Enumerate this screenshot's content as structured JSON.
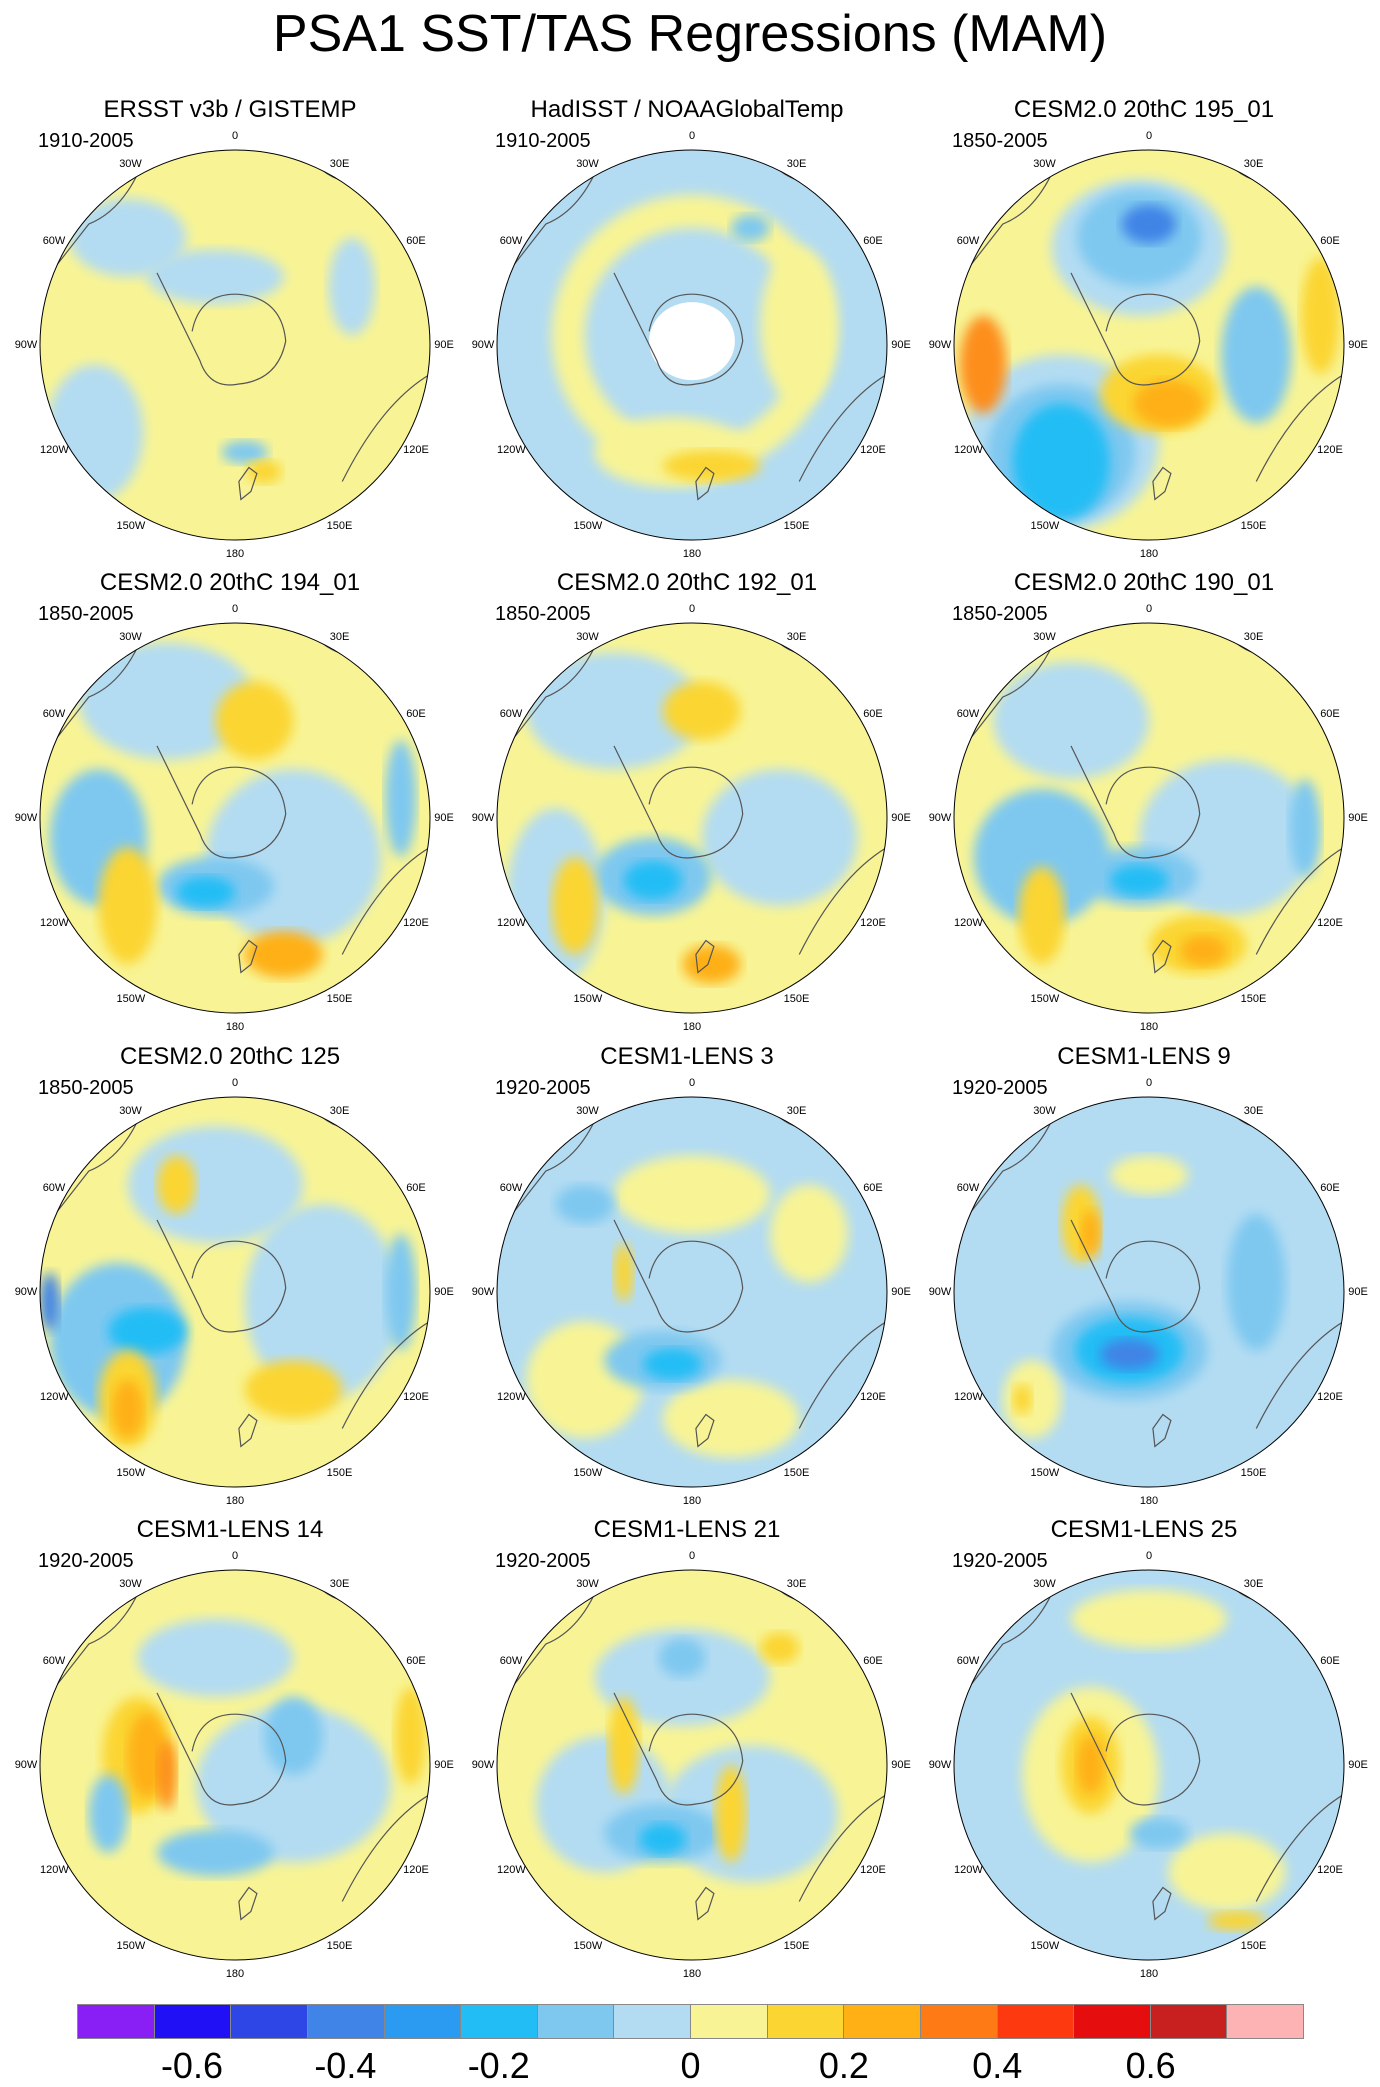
{
  "title": "PSA1 SST/TAS Regressions (MAM)",
  "lon_labels": [
    "0",
    "30E",
    "60E",
    "90E",
    "120E",
    "150E",
    "180",
    "150W",
    "120W",
    "90W",
    "60W",
    "30W"
  ],
  "panels": [
    {
      "title": "ERSST v3b / GISTEMP",
      "period": "1910-2005",
      "blobs": [
        [
          "#f8f495",
          0,
          0,
          1.0,
          1.0
        ],
        [
          "#b3dcf2",
          -0.72,
          0.45,
          0.25,
          0.35
        ],
        [
          "#b3dcf2",
          -0.55,
          -0.55,
          0.3,
          0.2
        ],
        [
          "#7ec8f0",
          0.05,
          0.55,
          0.12,
          0.06
        ],
        [
          "#b3dcf2",
          -0.1,
          -0.35,
          0.35,
          0.14
        ],
        [
          "#fbd531",
          0.15,
          0.65,
          0.09,
          0.06
        ],
        [
          "#b3dcf2",
          0.6,
          -0.3,
          0.12,
          0.25
        ]
      ],
      "land": true,
      "mask": false
    },
    {
      "title": "HadISST / NOAAGlobalTemp",
      "period": "1910-2005",
      "blobs": [
        [
          "#b3dcf2",
          0,
          0,
          1.0,
          1.0
        ],
        [
          "#f8f495",
          0,
          -0.05,
          0.72,
          0.72
        ],
        [
          "#b3dcf2",
          0,
          -0.05,
          0.55,
          0.55
        ],
        [
          "#f8f495",
          -0.1,
          0.55,
          0.4,
          0.18
        ],
        [
          "#fbd531",
          0.1,
          0.62,
          0.25,
          0.08
        ],
        [
          "#f8f495",
          0.55,
          -0.1,
          0.2,
          0.4
        ],
        [
          "#7ec8f0",
          0.3,
          -0.6,
          0.1,
          0.07
        ]
      ],
      "land": true,
      "mask": true
    },
    {
      "title": "CESM2.0 20thC 195_01",
      "period": "1850-2005",
      "blobs": [
        [
          "#f8f495",
          0,
          0,
          1.0,
          1.0
        ],
        [
          "#b3dcf2",
          -0.05,
          -0.5,
          0.45,
          0.35
        ],
        [
          "#7ec8f0",
          -0.05,
          -0.55,
          0.32,
          0.25
        ],
        [
          "#3f84e6",
          0,
          -0.62,
          0.14,
          0.1
        ],
        [
          "#b3dcf2",
          -0.45,
          0.5,
          0.5,
          0.45
        ],
        [
          "#7ec8f0",
          -0.45,
          0.55,
          0.38,
          0.35
        ],
        [
          "#22bdf5",
          -0.45,
          0.6,
          0.25,
          0.3
        ],
        [
          "#fd8e1a",
          -0.85,
          0.1,
          0.12,
          0.25
        ],
        [
          "#fbd531",
          0.05,
          0.25,
          0.3,
          0.2
        ],
        [
          "#feb014",
          0.1,
          0.3,
          0.18,
          0.12
        ],
        [
          "#fbd531",
          0.88,
          -0.15,
          0.1,
          0.3
        ],
        [
          "#7ec8f0",
          0.55,
          0.05,
          0.18,
          0.35
        ]
      ],
      "land": true,
      "mask": false
    },
    {
      "title": "CESM2.0 20thC 194_01",
      "period": "1850-2005",
      "blobs": [
        [
          "#f8f495",
          0,
          0,
          1.0,
          1.0
        ],
        [
          "#b3dcf2",
          -0.35,
          -0.6,
          0.45,
          0.3
        ],
        [
          "#b3dcf2",
          0.3,
          0.2,
          0.45,
          0.45
        ],
        [
          "#7ec8f0",
          -0.7,
          0.1,
          0.25,
          0.35
        ],
        [
          "#7ec8f0",
          -0.1,
          0.35,
          0.3,
          0.15
        ],
        [
          "#22bdf5",
          -0.15,
          0.38,
          0.15,
          0.08
        ],
        [
          "#fbd531",
          -0.55,
          0.45,
          0.15,
          0.3
        ],
        [
          "#feb014",
          0.25,
          0.7,
          0.2,
          0.12
        ],
        [
          "#fbd531",
          0.1,
          -0.5,
          0.2,
          0.2
        ],
        [
          "#7ec8f0",
          0.85,
          -0.1,
          0.08,
          0.3
        ]
      ],
      "land": true,
      "mask": false
    },
    {
      "title": "CESM2.0 20thC 192_01",
      "period": "1850-2005",
      "blobs": [
        [
          "#f8f495",
          0,
          0,
          1.0,
          1.0
        ],
        [
          "#b3dcf2",
          -0.4,
          -0.55,
          0.45,
          0.3
        ],
        [
          "#b3dcf2",
          -0.7,
          0.4,
          0.25,
          0.45
        ],
        [
          "#b3dcf2",
          0.45,
          0.1,
          0.4,
          0.35
        ],
        [
          "#7ec8f0",
          -0.2,
          0.3,
          0.3,
          0.2
        ],
        [
          "#22bdf5",
          -0.2,
          0.32,
          0.15,
          0.1
        ],
        [
          "#fbd531",
          -0.6,
          0.45,
          0.12,
          0.25
        ],
        [
          "#feb014",
          0.1,
          0.75,
          0.15,
          0.1
        ],
        [
          "#fbd531",
          0.05,
          -0.55,
          0.2,
          0.15
        ]
      ],
      "land": true,
      "mask": false
    },
    {
      "title": "CESM2.0 20thC 190_01",
      "period": "1850-2005",
      "blobs": [
        [
          "#f8f495",
          0,
          0,
          1.0,
          1.0
        ],
        [
          "#b3dcf2",
          -0.4,
          -0.5,
          0.4,
          0.3
        ],
        [
          "#b3dcf2",
          0.4,
          0.1,
          0.45,
          0.4
        ],
        [
          "#7ec8f0",
          -0.55,
          0.2,
          0.35,
          0.35
        ],
        [
          "#7ec8f0",
          -0.05,
          0.3,
          0.3,
          0.15
        ],
        [
          "#22bdf5",
          -0.05,
          0.32,
          0.15,
          0.08
        ],
        [
          "#fbd531",
          -0.55,
          0.5,
          0.12,
          0.25
        ],
        [
          "#fbd531",
          0.25,
          0.65,
          0.25,
          0.15
        ],
        [
          "#feb014",
          0.28,
          0.68,
          0.12,
          0.08
        ],
        [
          "#7ec8f0",
          0.8,
          0.05,
          0.08,
          0.25
        ]
      ],
      "land": true,
      "mask": false
    },
    {
      "title": "CESM2.0 20thC 125",
      "period": "1850-2005",
      "blobs": [
        [
          "#f8f495",
          0,
          0,
          1.0,
          1.0
        ],
        [
          "#b3dcf2",
          -0.1,
          -0.55,
          0.45,
          0.3
        ],
        [
          "#b3dcf2",
          0.45,
          0.05,
          0.4,
          0.5
        ],
        [
          "#7ec8f0",
          -0.6,
          0.25,
          0.35,
          0.4
        ],
        [
          "#22bdf5",
          -0.45,
          0.2,
          0.2,
          0.12
        ],
        [
          "#3f84e6",
          -0.95,
          0.05,
          0.05,
          0.15
        ],
        [
          "#fbd531",
          -0.55,
          0.55,
          0.15,
          0.25
        ],
        [
          "#feb014",
          -0.55,
          0.6,
          0.08,
          0.15
        ],
        [
          "#fbd531",
          0.3,
          0.5,
          0.25,
          0.15
        ],
        [
          "#fbd531",
          -0.3,
          -0.55,
          0.1,
          0.15
        ],
        [
          "#7ec8f0",
          0.85,
          0.0,
          0.08,
          0.3
        ]
      ],
      "land": true,
      "mask": false
    },
    {
      "title": "CESM1-LENS 3",
      "period": "1920-2005",
      "blobs": [
        [
          "#b3dcf2",
          0,
          0,
          1.0,
          1.0
        ],
        [
          "#f8f495",
          0.0,
          -0.5,
          0.4,
          0.2
        ],
        [
          "#f8f495",
          -0.55,
          0.45,
          0.3,
          0.3
        ],
        [
          "#f8f495",
          0.2,
          0.65,
          0.35,
          0.2
        ],
        [
          "#f8f495",
          0.6,
          -0.3,
          0.2,
          0.25
        ],
        [
          "#7ec8f0",
          -0.15,
          0.35,
          0.3,
          0.15
        ],
        [
          "#22bdf5",
          -0.1,
          0.37,
          0.15,
          0.08
        ],
        [
          "#7ec8f0",
          -0.55,
          -0.45,
          0.15,
          0.1
        ],
        [
          "#fbd531",
          -0.35,
          -0.1,
          0.05,
          0.15
        ]
      ],
      "land": true,
      "mask": false
    },
    {
      "title": "CESM1-LENS 9",
      "period": "1920-2005",
      "blobs": [
        [
          "#b3dcf2",
          0,
          0,
          1.0,
          1.0
        ],
        [
          "#7ec8f0",
          -0.1,
          0.3,
          0.4,
          0.25
        ],
        [
          "#22bdf5",
          -0.1,
          0.3,
          0.28,
          0.17
        ],
        [
          "#3f84e6",
          -0.1,
          0.32,
          0.15,
          0.08
        ],
        [
          "#fbd531",
          -0.35,
          -0.35,
          0.1,
          0.2
        ],
        [
          "#feb014",
          -0.3,
          -0.3,
          0.05,
          0.12
        ],
        [
          "#f8f495",
          -0.6,
          0.55,
          0.15,
          0.2
        ],
        [
          "#fbd531",
          -0.65,
          0.55,
          0.05,
          0.08
        ],
        [
          "#7ec8f0",
          0.55,
          -0.05,
          0.15,
          0.35
        ],
        [
          "#f8f495",
          0.0,
          -0.6,
          0.2,
          0.1
        ]
      ],
      "land": true,
      "mask": false
    },
    {
      "title": "CESM1-LENS 14",
      "period": "1920-2005",
      "blobs": [
        [
          "#f8f495",
          0,
          0,
          1.0,
          1.0
        ],
        [
          "#b3dcf2",
          -0.1,
          -0.55,
          0.4,
          0.2
        ],
        [
          "#b3dcf2",
          0.3,
          0.1,
          0.5,
          0.4
        ],
        [
          "#7ec8f0",
          0.3,
          -0.15,
          0.15,
          0.2
        ],
        [
          "#7ec8f0",
          -0.1,
          0.45,
          0.3,
          0.12
        ],
        [
          "#fbd531",
          -0.5,
          -0.05,
          0.18,
          0.3
        ],
        [
          "#feb014",
          -0.45,
          -0.05,
          0.1,
          0.22
        ],
        [
          "#fd8e1a",
          -0.35,
          0.05,
          0.05,
          0.18
        ],
        [
          "#7ec8f0",
          -0.65,
          0.25,
          0.1,
          0.2
        ],
        [
          "#fbd531",
          0.9,
          -0.15,
          0.08,
          0.25
        ]
      ],
      "land": true,
      "mask": false
    },
    {
      "title": "CESM1-LENS 21",
      "period": "1920-2005",
      "blobs": [
        [
          "#f8f495",
          0,
          0,
          1.0,
          1.0
        ],
        [
          "#b3dcf2",
          -0.05,
          -0.45,
          0.45,
          0.25
        ],
        [
          "#b3dcf2",
          0.3,
          0.25,
          0.45,
          0.35
        ],
        [
          "#b3dcf2",
          -0.45,
          0.2,
          0.35,
          0.35
        ],
        [
          "#7ec8f0",
          -0.15,
          0.35,
          0.3,
          0.15
        ],
        [
          "#22bdf5",
          -0.15,
          0.38,
          0.12,
          0.08
        ],
        [
          "#7ec8f0",
          -0.05,
          -0.55,
          0.12,
          0.1
        ],
        [
          "#fbd531",
          -0.35,
          -0.1,
          0.08,
          0.25
        ],
        [
          "#fbd531",
          0.2,
          0.25,
          0.08,
          0.25
        ],
        [
          "#fbd531",
          0.45,
          -0.6,
          0.1,
          0.08
        ]
      ],
      "land": true,
      "mask": false
    },
    {
      "title": "CESM1-LENS 25",
      "period": "1920-2005",
      "blobs": [
        [
          "#b3dcf2",
          0,
          0,
          1.0,
          1.0
        ],
        [
          "#f8f495",
          -0.3,
          0.05,
          0.35,
          0.45
        ],
        [
          "#f8f495",
          0.0,
          -0.75,
          0.4,
          0.15
        ],
        [
          "#f8f495",
          0.4,
          0.55,
          0.3,
          0.2
        ],
        [
          "#fbd531",
          -0.3,
          0.0,
          0.15,
          0.25
        ],
        [
          "#feb014",
          -0.3,
          0.0,
          0.07,
          0.15
        ],
        [
          "#7ec8f0",
          0.05,
          0.35,
          0.15,
          0.08
        ],
        [
          "#fbd531",
          0.45,
          0.8,
          0.15,
          0.05
        ]
      ],
      "land": true,
      "mask": false
    }
  ],
  "colorbar": {
    "colors": [
      "#8a1ff5",
      "#1f10f5",
      "#2f46e6",
      "#3f84e6",
      "#2b9bf2",
      "#22bdf5",
      "#7ec8f0",
      "#b3dcf2",
      "#f8f495",
      "#fbd531",
      "#feb014",
      "#fd7a15",
      "#fd3a0f",
      "#e50d0d",
      "#c81f1f",
      "#fdb3b3"
    ],
    "labels": [
      {
        "text": "-0.6",
        "frac": 0.0937
      },
      {
        "text": "-0.4",
        "frac": 0.2187
      },
      {
        "text": "-0.2",
        "frac": 0.3437
      },
      {
        "text": "0",
        "frac": 0.5
      },
      {
        "text": "0.2",
        "frac": 0.625
      },
      {
        "text": "0.4",
        "frac": 0.75
      },
      {
        "text": "0.6",
        "frac": 0.875
      }
    ]
  }
}
